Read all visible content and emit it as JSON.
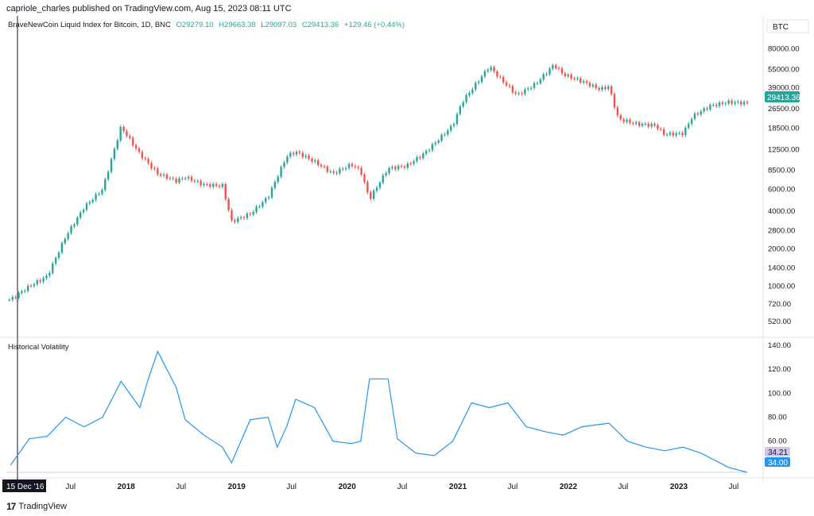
{
  "header": {
    "publish_line": "capriole_charles published on TradingView.com, Aug 15, 2023 08:11 UTC"
  },
  "currency_badge": "BTC",
  "legend": {
    "symbol": "BraveNewCoin Liquid Index for Bitcoin, 1D, BNC",
    "open": "O29279.10",
    "high": "H29663.38",
    "low": "L29097.03",
    "close": "C29413.36",
    "change": "+129.46 (+0.44%)"
  },
  "price_label": "29413.36",
  "indicator_title": "Historical Volatility",
  "hv_label_1": "34.21",
  "hv_label_2": "34.00",
  "crosshair_date": "15 Dec '16",
  "footer": {
    "brand": "TradingView"
  },
  "colors": {
    "up": "#26a69a",
    "down": "#ef5350",
    "hv": "#2196f3",
    "label_green": "#26a69a",
    "label_blue": "#2196f3",
    "label_purple": "#d1c4e9"
  },
  "chart_data": [
    {
      "type": "line",
      "series": [
        {
          "name": "BraveNewCoin Liquid Index for Bitcoin",
          "values": [
            780,
            1000,
            1200,
            2500,
            4300,
            6000,
            19000,
            11500,
            8000,
            7000,
            7500,
            6500,
            6400,
            3300,
            3800,
            5200,
            11000,
            12000,
            10000,
            8000,
            9500,
            8400,
            5000,
            8800,
            9200,
            11800,
            19500,
            30000,
            58000,
            48000,
            34000,
            42000,
            60000,
            50000,
            44000,
            38000,
            40000,
            22000,
            20000,
            19500,
            16500,
            16800,
            23000,
            28000,
            30000,
            29413
          ]
        }
      ],
      "x": [
        "2016-12",
        "2017-02",
        "2017-04",
        "2017-06",
        "2017-08",
        "2017-10",
        "2017-12",
        "2018-02",
        "2018-04",
        "2018-06",
        "2018-07",
        "2018-09",
        "2018-11",
        "2018-12",
        "2019-02",
        "2019-04",
        "2019-06",
        "2019-07",
        "2019-09",
        "2019-11",
        "2020-01",
        "2020-02",
        "2020-03",
        "2020-05",
        "2020-07",
        "2020-09",
        "2020-12",
        "2021-01",
        "2021-04",
        "2021-05",
        "2021-07",
        "2021-09",
        "2021-11",
        "2021-12",
        "2022-02",
        "2022-04",
        "2022-05",
        "2022-06",
        "2022-08",
        "2022-10",
        "2022-11",
        "2023-01",
        "2023-02",
        "2023-04",
        "2023-06",
        "2023-08"
      ],
      "yscale": "log",
      "ylim": [
        450,
        95000
      ],
      "y_ticks": [
        "80000.00",
        "55000.00",
        "39000.00",
        "26500.00",
        "18500.00",
        "12500.00",
        "8500.00",
        "6000.00",
        "4000.00",
        "2800.00",
        "2000.00",
        "1400.00",
        "1000.00",
        "720.00",
        "520.00"
      ],
      "x_ticks": [
        "Jul",
        "2018",
        "Jul",
        "2019",
        "Jul",
        "2020",
        "Jul",
        "2021",
        "Jul",
        "2022",
        "Jul",
        "2023",
        "Jul"
      ]
    },
    {
      "type": "line",
      "title": "Historical Volatility",
      "series": [
        {
          "name": "Historical Volatility",
          "values": [
            40,
            62,
            64,
            80,
            72,
            80,
            110,
            88,
            112,
            135,
            120,
            105,
            78,
            65,
            55,
            42,
            78,
            80,
            55,
            72,
            95,
            88,
            60,
            58,
            60,
            112,
            112,
            62,
            50,
            48,
            60,
            92,
            88,
            92,
            72,
            68,
            65,
            72,
            75,
            60,
            55,
            52,
            55,
            50,
            38,
            34
          ]
        }
      ],
      "x": [
        "2016-12",
        "2017-02",
        "2017-04",
        "2017-06",
        "2017-08",
        "2017-10",
        "2017-12",
        "2018-02",
        "2018-03",
        "2018-04",
        "2018-05",
        "2018-06",
        "2018-07",
        "2018-09",
        "2018-11",
        "2018-12",
        "2019-02",
        "2019-04",
        "2019-05",
        "2019-06",
        "2019-07",
        "2019-09",
        "2019-11",
        "2020-01",
        "2020-02",
        "2020-03",
        "2020-05",
        "2020-06",
        "2020-08",
        "2020-10",
        "2020-12",
        "2021-02",
        "2021-04",
        "2021-06",
        "2021-08",
        "2021-10",
        "2021-12",
        "2022-02",
        "2022-05",
        "2022-07",
        "2022-09",
        "2022-11",
        "2023-01",
        "2023-03",
        "2023-06",
        "2023-08"
      ],
      "ylim": [
        32,
        142
      ],
      "y_ticks": [
        "140.00",
        "120.00",
        "100.00",
        "80.00",
        "60.00"
      ]
    }
  ]
}
